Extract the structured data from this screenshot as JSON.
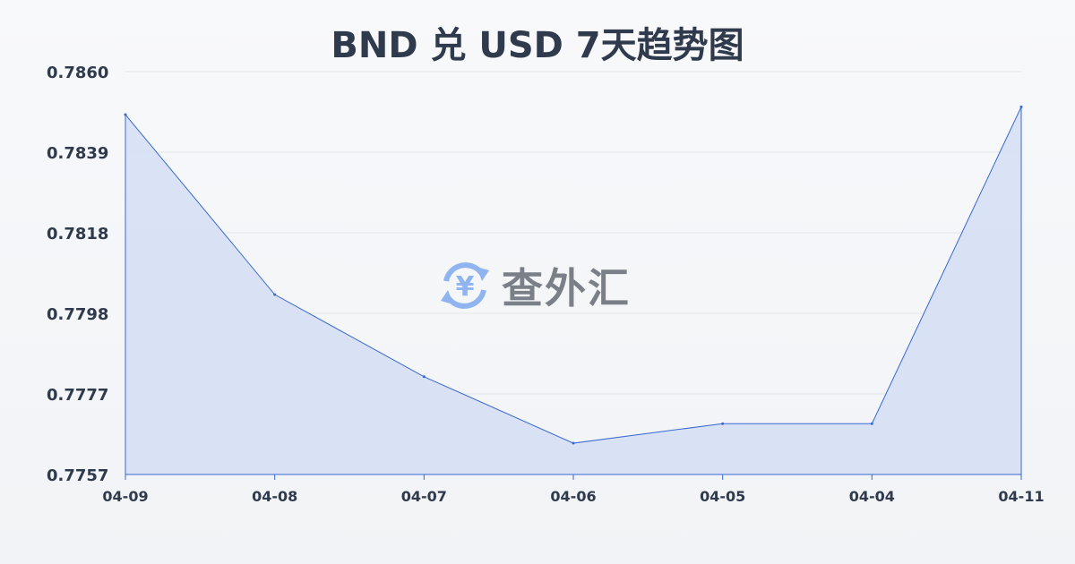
{
  "chart_data": {
    "type": "area",
    "title": "BND 兑 USD 7天趋势图",
    "categories": [
      "04-09",
      "04-08",
      "04-07",
      "04-06",
      "04-05",
      "04-04",
      "04-11"
    ],
    "series": [
      {
        "values": [
          0.7849,
          0.7803,
          0.7782,
          0.7765,
          0.777,
          0.777,
          0.7851
        ]
      }
    ],
    "yticks": [
      "0.7860",
      "0.7839",
      "0.7818",
      "0.7798",
      "0.7777",
      "0.7757"
    ],
    "ylim": [
      0.7757,
      0.786
    ],
    "grid": true,
    "line_color": "#3a68d1",
    "fill_color": "#d6e0f4"
  },
  "watermark": {
    "text": "查外汇",
    "icon": "yen-exchange-icon"
  }
}
